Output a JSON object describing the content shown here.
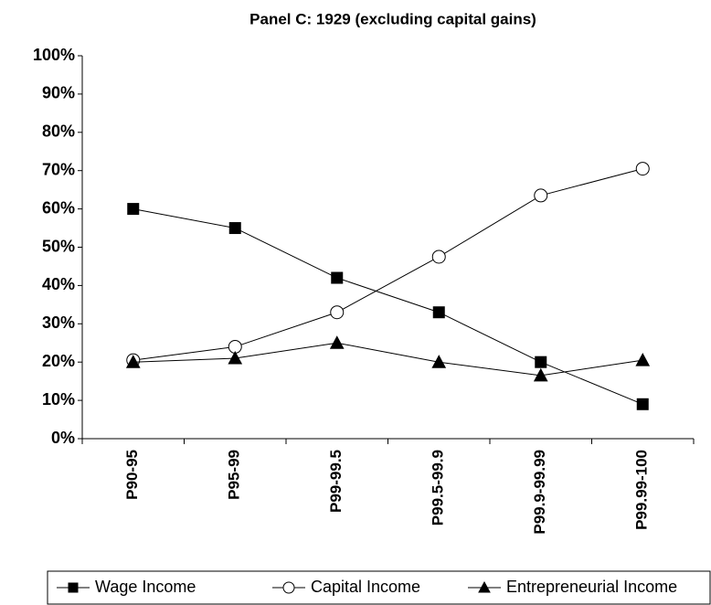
{
  "chart_data": {
    "type": "line",
    "title": "Panel C: 1929 (excluding capital gains)",
    "categories": [
      "P90-95",
      "P95-99",
      "P99-99.5",
      "P99.5-99.9",
      "P99.9-99.99",
      "P99.99-100"
    ],
    "series": [
      {
        "name": "Wage Income",
        "color": "#000000",
        "marker": "square",
        "values": [
          60,
          55,
          42,
          33,
          20,
          9
        ]
      },
      {
        "name": "Capital Income",
        "color": "#000000",
        "marker": "circle",
        "values": [
          20.5,
          24,
          33,
          47.5,
          63.5,
          70.5
        ]
      },
      {
        "name": "Entrepreneurial Income",
        "color": "#000000",
        "marker": "triangle",
        "values": [
          20,
          21,
          25,
          20,
          16.5,
          20.5
        ]
      }
    ],
    "ylim": [
      0,
      100
    ],
    "yticks": [
      {
        "value": 0,
        "label": "0%"
      },
      {
        "value": 10,
        "label": "10%"
      },
      {
        "value": 20,
        "label": "20%"
      },
      {
        "value": 30,
        "label": "30%"
      },
      {
        "value": 40,
        "label": "40%"
      },
      {
        "value": 50,
        "label": "50%"
      },
      {
        "value": 60,
        "label": "60%"
      },
      {
        "value": 70,
        "label": "70%"
      },
      {
        "value": 80,
        "label": "80%"
      },
      {
        "value": 90,
        "label": "90%"
      },
      {
        "value": 100,
        "label": "100%"
      }
    ],
    "legend": "bottom"
  }
}
